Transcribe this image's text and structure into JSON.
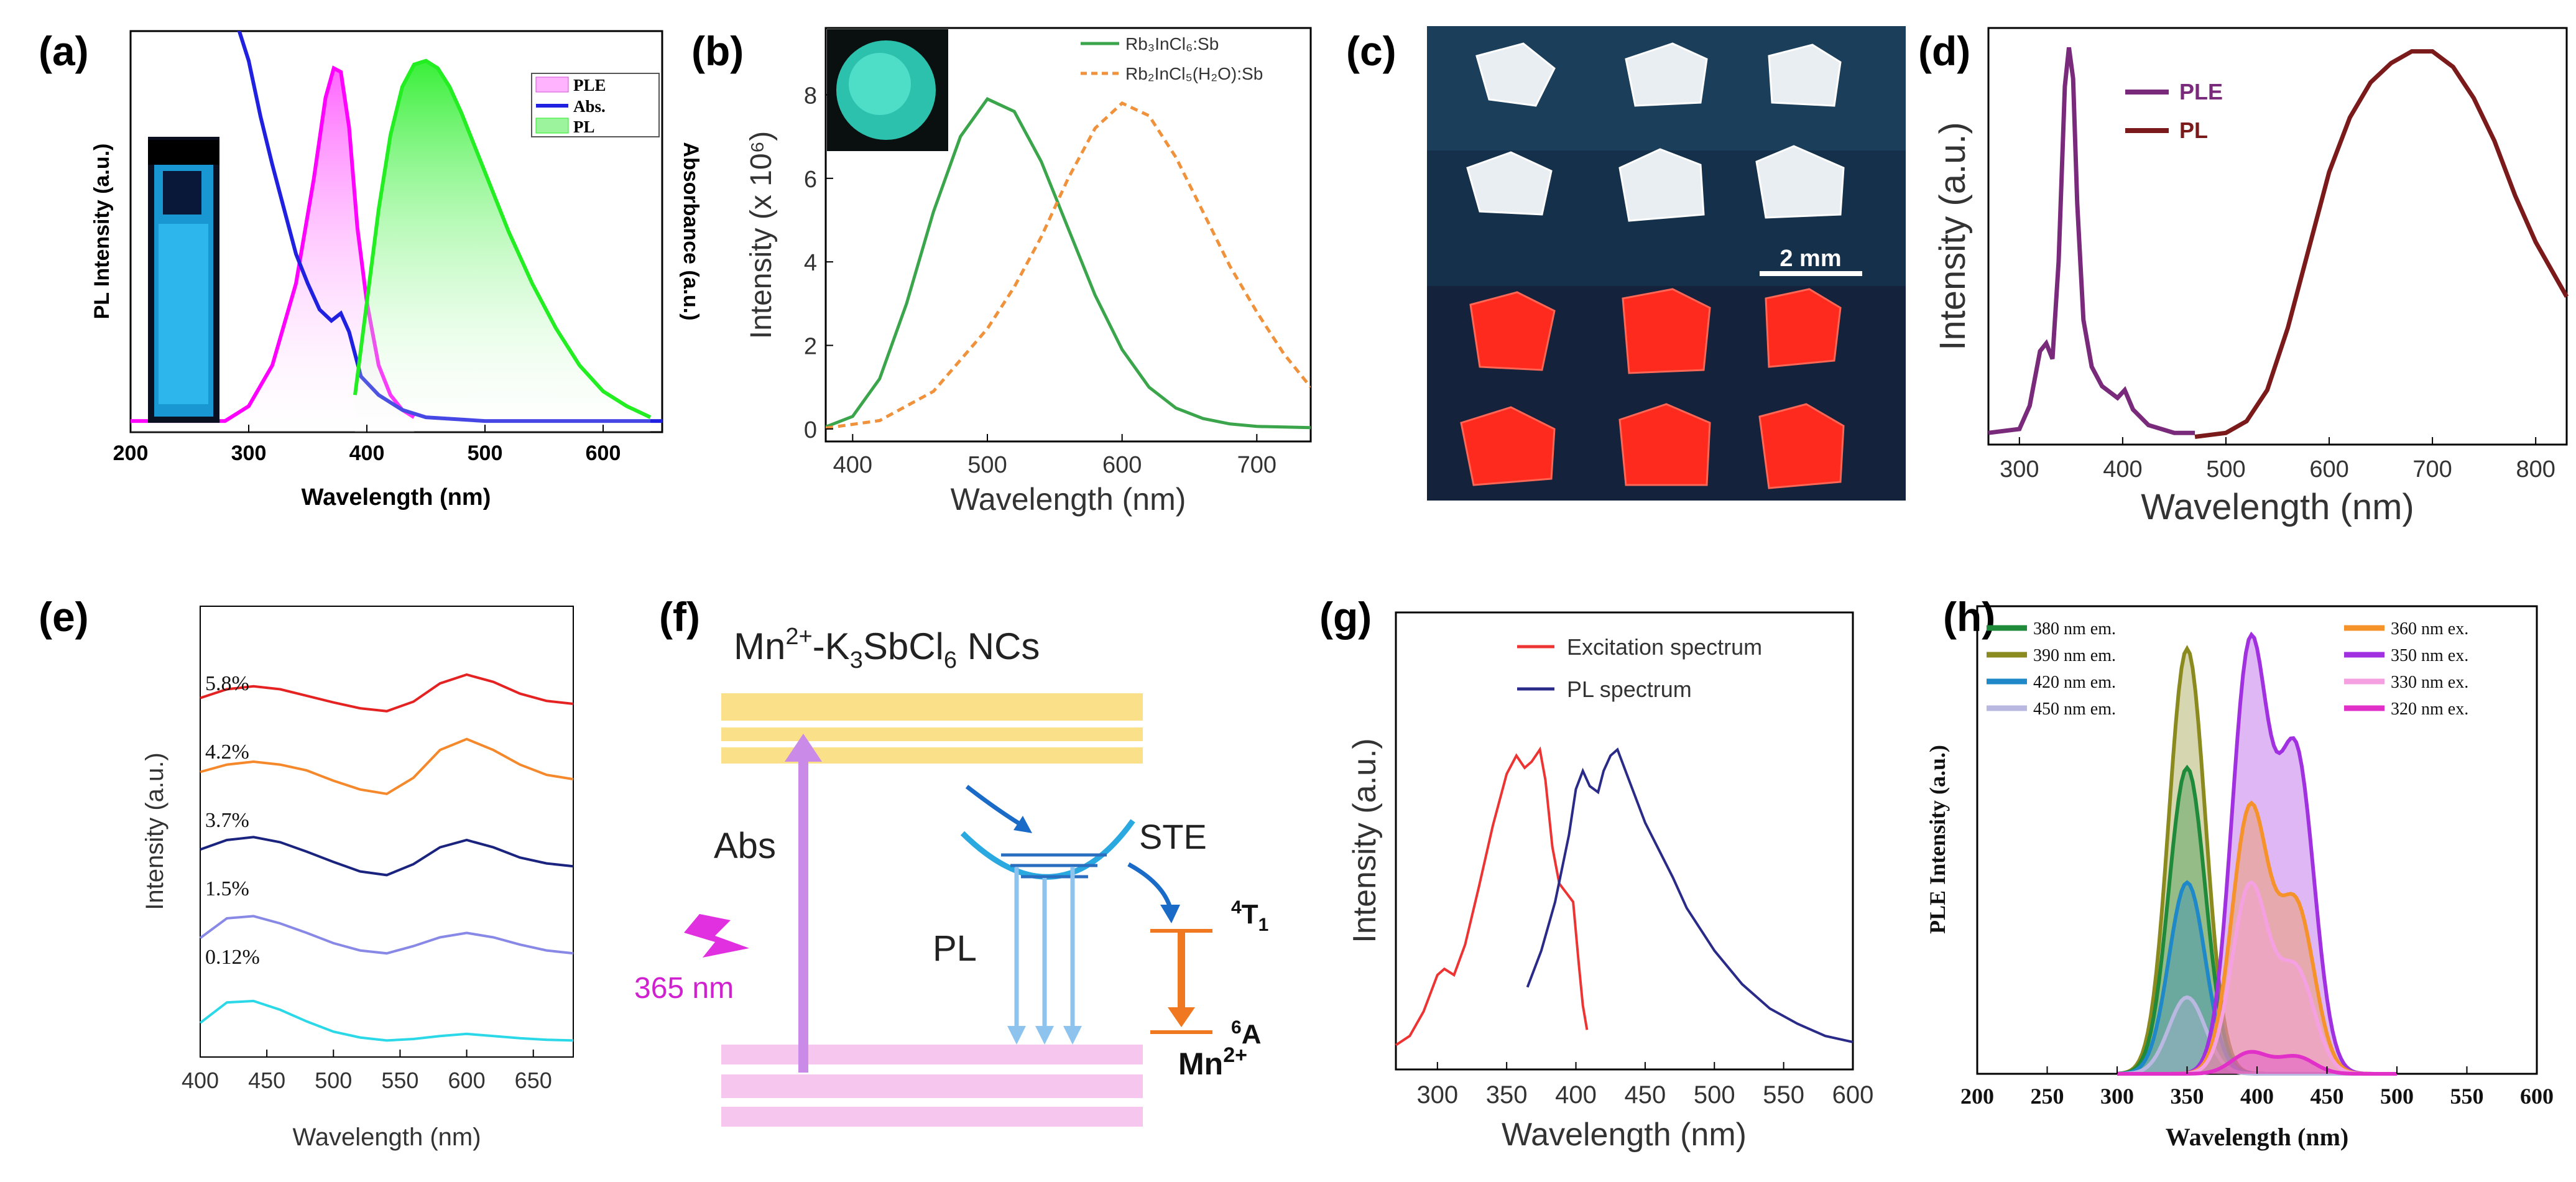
{
  "chart_data": [
    {
      "panel": "(a)",
      "type": "line",
      "xlabel": "Wavelength (nm)",
      "ylabel": "PL Intensity (a.u.)",
      "y2label": "Absorbance (a.u.)",
      "xlim": [
        200,
        650
      ],
      "xticks": [
        200,
        300,
        400,
        500,
        600
      ],
      "legend_position": "top-right",
      "legend": [
        "PLE",
        "Abs.",
        "PL"
      ],
      "series": [
        {
          "name": "PLE",
          "color": "#ff00ff",
          "fill": true,
          "x": [
            200,
            280,
            300,
            320,
            340,
            355,
            365,
            372,
            378,
            385,
            392,
            400,
            410,
            420,
            430,
            440
          ],
          "y": [
            0.03,
            0.03,
            0.07,
            0.18,
            0.4,
            0.68,
            0.9,
            0.98,
            0.97,
            0.82,
            0.55,
            0.35,
            0.18,
            0.1,
            0.06,
            0.04
          ]
        },
        {
          "name": "Abs.",
          "color": "#2020e0",
          "fill": false,
          "x": [
            290,
            300,
            310,
            320,
            330,
            340,
            350,
            360,
            370,
            378,
            385,
            395,
            410,
            430,
            450,
            500,
            600,
            650
          ],
          "y": [
            1.1,
            1.0,
            0.85,
            0.72,
            0.6,
            0.48,
            0.4,
            0.33,
            0.3,
            0.32,
            0.27,
            0.15,
            0.1,
            0.06,
            0.04,
            0.03,
            0.03,
            0.03
          ]
        },
        {
          "name": "PL",
          "color": "#22ee22",
          "fill": true,
          "x": [
            390,
            400,
            410,
            420,
            430,
            440,
            450,
            460,
            470,
            480,
            500,
            520,
            540,
            560,
            580,
            600,
            620,
            640
          ],
          "y": [
            0.1,
            0.35,
            0.6,
            0.8,
            0.93,
            0.99,
            1.0,
            0.98,
            0.93,
            0.86,
            0.7,
            0.54,
            0.4,
            0.28,
            0.18,
            0.11,
            0.07,
            0.04
          ]
        }
      ]
    },
    {
      "panel": "(b)",
      "type": "line",
      "xlabel": "Wavelength (nm)",
      "ylabel": "Intensity (x 10⁶)",
      "xlim": [
        380,
        740
      ],
      "ylim": [
        -0.3,
        9.6
      ],
      "xticks": [
        400,
        500,
        600,
        700
      ],
      "yticks": [
        0,
        2,
        4,
        6,
        8
      ],
      "legend_position": "top-right",
      "legend": [
        "Rb₃InCl₆:Sb",
        "Rb₂InCl₅(H₂O):Sb"
      ],
      "series": [
        {
          "name": "Rb₃InCl₆:Sb",
          "color": "#3aa54a",
          "dash": false,
          "x": [
            380,
            400,
            420,
            440,
            460,
            480,
            500,
            520,
            540,
            560,
            580,
            600,
            620,
            640,
            660,
            680,
            700,
            740
          ],
          "y": [
            0.05,
            0.3,
            1.2,
            3.0,
            5.2,
            7.0,
            7.9,
            7.6,
            6.4,
            4.8,
            3.2,
            1.9,
            1.0,
            0.5,
            0.25,
            0.12,
            0.06,
            0.03
          ]
        },
        {
          "name": "Rb₂InCl₅(H₂O):Sb",
          "color": "#f0923c",
          "dash": true,
          "x": [
            380,
            420,
            460,
            500,
            520,
            540,
            560,
            580,
            600,
            620,
            640,
            660,
            680,
            700,
            720,
            740
          ],
          "y": [
            0.02,
            0.2,
            0.9,
            2.4,
            3.4,
            4.6,
            6.0,
            7.2,
            7.8,
            7.5,
            6.5,
            5.2,
            3.9,
            2.8,
            1.8,
            1.0
          ]
        }
      ]
    },
    {
      "panel": "(d)",
      "type": "line",
      "xlabel": "Wavelength (nm)",
      "ylabel": "Intensity (a.u.)",
      "xlim": [
        270,
        830
      ],
      "xticks": [
        300,
        400,
        500,
        600,
        700,
        800
      ],
      "legend_position": "top-left",
      "legend": [
        "PLE",
        "PL"
      ],
      "series": [
        {
          "name": "PLE",
          "color": "#7a2a7a",
          "x": [
            270,
            300,
            310,
            320,
            326,
            332,
            338,
            344,
            348,
            352,
            356,
            362,
            370,
            380,
            395,
            402,
            410,
            425,
            450,
            470
          ],
          "y": [
            0.01,
            0.02,
            0.08,
            0.22,
            0.24,
            0.2,
            0.45,
            0.9,
            1.0,
            0.92,
            0.6,
            0.3,
            0.18,
            0.13,
            0.1,
            0.12,
            0.07,
            0.03,
            0.01,
            0.01
          ]
        },
        {
          "name": "PL",
          "color": "#7a1a1a",
          "x": [
            470,
            500,
            520,
            540,
            560,
            580,
            600,
            620,
            640,
            660,
            680,
            700,
            720,
            740,
            760,
            780,
            800,
            830
          ],
          "y": [
            0.0,
            0.01,
            0.04,
            0.12,
            0.28,
            0.48,
            0.68,
            0.82,
            0.91,
            0.96,
            0.99,
            0.99,
            0.95,
            0.87,
            0.76,
            0.62,
            0.5,
            0.36
          ]
        }
      ]
    },
    {
      "panel": "(e)",
      "type": "line",
      "xlabel": "Wavelength (nm)",
      "ylabel": "Intensity (a.u.)",
      "xlim": [
        400,
        680
      ],
      "xticks": [
        400,
        450,
        500,
        550,
        600,
        650
      ],
      "series_labels": [
        "5.8%",
        "4.2%",
        "3.7%",
        "1.5%",
        "0.12%"
      ],
      "series": [
        {
          "name": "5.8%",
          "color": "#e52222",
          "offset": 4,
          "x": [
            400,
            420,
            440,
            460,
            480,
            500,
            520,
            540,
            560,
            580,
            600,
            620,
            640,
            660,
            680
          ],
          "y": [
            0.3,
            0.42,
            0.46,
            0.42,
            0.33,
            0.24,
            0.16,
            0.12,
            0.25,
            0.5,
            0.62,
            0.52,
            0.36,
            0.26,
            0.22
          ]
        },
        {
          "name": "4.2%",
          "color": "#f5882a",
          "offset": 3,
          "x": [
            400,
            420,
            440,
            460,
            480,
            500,
            520,
            540,
            560,
            580,
            600,
            620,
            640,
            660,
            680
          ],
          "y": [
            0.4,
            0.5,
            0.54,
            0.5,
            0.42,
            0.28,
            0.16,
            0.1,
            0.32,
            0.7,
            0.85,
            0.7,
            0.5,
            0.36,
            0.3
          ]
        },
        {
          "name": "3.7%",
          "color": "#1a237e",
          "offset": 2,
          "x": [
            400,
            420,
            440,
            460,
            480,
            500,
            520,
            540,
            560,
            580,
            600,
            620,
            640,
            660,
            680
          ],
          "y": [
            0.45,
            0.58,
            0.62,
            0.55,
            0.42,
            0.28,
            0.15,
            0.1,
            0.25,
            0.48,
            0.58,
            0.48,
            0.34,
            0.26,
            0.22
          ]
        },
        {
          "name": "1.5%",
          "color": "#8888e6",
          "offset": 1,
          "x": [
            400,
            420,
            440,
            460,
            480,
            500,
            520,
            540,
            560,
            580,
            600,
            620,
            640,
            660,
            680
          ],
          "y": [
            0.35,
            0.62,
            0.65,
            0.55,
            0.42,
            0.28,
            0.18,
            0.14,
            0.24,
            0.36,
            0.42,
            0.36,
            0.26,
            0.18,
            0.14
          ]
        },
        {
          "name": "0.12%",
          "color": "#2ad8e8",
          "offset": 0,
          "x": [
            400,
            420,
            440,
            460,
            480,
            500,
            520,
            540,
            560,
            580,
            600,
            620,
            640,
            660,
            680
          ],
          "y": [
            0.3,
            0.58,
            0.6,
            0.48,
            0.32,
            0.18,
            0.1,
            0.06,
            0.08,
            0.12,
            0.15,
            0.12,
            0.09,
            0.07,
            0.06
          ]
        }
      ]
    },
    {
      "panel": "(g)",
      "type": "line",
      "xlabel": "Wavelength (nm)",
      "ylabel": "Intensity (a.u.)",
      "xlim": [
        270,
        600
      ],
      "xticks": [
        300,
        350,
        400,
        450,
        500,
        550,
        600
      ],
      "legend_position": "top-right",
      "legend": [
        "Excitation spectrum",
        "PL spectrum"
      ],
      "series": [
        {
          "name": "Excitation spectrum",
          "color": "#ee3333",
          "x": [
            270,
            280,
            290,
            300,
            305,
            312,
            320,
            330,
            340,
            350,
            357,
            363,
            368,
            374,
            378,
            383,
            388,
            393,
            398,
            402,
            405,
            408
          ],
          "y": [
            0.03,
            0.06,
            0.14,
            0.26,
            0.28,
            0.26,
            0.36,
            0.55,
            0.75,
            0.92,
            0.98,
            0.94,
            0.96,
            1.0,
            0.9,
            0.68,
            0.56,
            0.53,
            0.5,
            0.3,
            0.16,
            0.08
          ]
        },
        {
          "name": "PL spectrum",
          "color": "#2a2a88",
          "x": [
            365,
            375,
            385,
            395,
            400,
            405,
            410,
            416,
            420,
            425,
            430,
            440,
            450,
            460,
            470,
            480,
            500,
            520,
            540,
            560,
            580,
            600
          ],
          "y": [
            0.22,
            0.34,
            0.5,
            0.72,
            0.87,
            0.93,
            0.88,
            0.86,
            0.93,
            0.98,
            1.0,
            0.88,
            0.76,
            0.67,
            0.58,
            0.48,
            0.34,
            0.23,
            0.15,
            0.1,
            0.06,
            0.04
          ]
        }
      ]
    },
    {
      "panel": "(h)",
      "type": "area",
      "xlabel": "Wavelength (nm)",
      "ylabel": "PLE Intensity (a.u.)",
      "xlim": [
        200,
        600
      ],
      "xticks": [
        200,
        250,
        300,
        350,
        400,
        450,
        500,
        550,
        600
      ],
      "legend_position": "top",
      "legend_left": [
        "380 nm em.",
        "390 nm em.",
        "420 nm em.",
        "450 nm em."
      ],
      "legend_right": [
        "360 nm ex.",
        "350 nm ex.",
        "330 nm ex.",
        "320 nm ex."
      ],
      "series": [
        {
          "name": "390 nm em.",
          "color": "#8a8a1e",
          "type": "peak",
          "center": 350,
          "width": 13,
          "peak": 1.0
        },
        {
          "name": "380 nm em.",
          "color": "#1e8a3a",
          "type": "peak",
          "center": 350,
          "width": 13,
          "peak": 0.72
        },
        {
          "name": "420 nm em.",
          "color": "#1e88c8",
          "type": "peak",
          "center": 350,
          "width": 13,
          "peak": 0.45
        },
        {
          "name": "450 nm em.",
          "color": "#b8b8e0",
          "type": "peak",
          "center": 350,
          "width": 13,
          "peak": 0.18
        },
        {
          "name": "350 nm ex.",
          "color": "#a030e0",
          "type": "double",
          "c1": 395,
          "c2": 428,
          "width": 13,
          "p1": 1.0,
          "p2": 0.74
        },
        {
          "name": "360 nm ex.",
          "color": "#f5922a",
          "type": "double",
          "c1": 395,
          "c2": 428,
          "width": 13,
          "p1": 0.62,
          "p2": 0.39
        },
        {
          "name": "330 nm ex.",
          "color": "#f5a0e0",
          "type": "double",
          "c1": 395,
          "c2": 428,
          "width": 13,
          "p1": 0.44,
          "p2": 0.24
        },
        {
          "name": "320 nm ex.",
          "color": "#e030c8",
          "type": "double",
          "c1": 395,
          "c2": 428,
          "width": 13,
          "p1": 0.05,
          "p2": 0.04
        }
      ]
    }
  ],
  "panels": {
    "a": {
      "label": "(a)"
    },
    "b": {
      "label": "(b)"
    },
    "c": {
      "label": "(c)",
      "scale_bar": "2 mm"
    },
    "d": {
      "label": "(d)"
    },
    "e": {
      "label": "(e)"
    },
    "f": {
      "label": "(f)",
      "title_main": "Mn",
      "title_sup": "2+",
      "title_rest": "-K",
      "title_sub1": "3",
      "title_mid": "SbCl",
      "title_sub2": "6",
      "title_end": " NCs",
      "abs": "Abs",
      "ste": "STE",
      "pl": "PL",
      "wavelength": "365 nm",
      "t1_sup": "4",
      "t1_main": "T",
      "t1_sub": "1",
      "a6_sup": "6",
      "a6_main": "A",
      "mn": "Mn",
      "mn_sup": "2+"
    },
    "g": {
      "label": "(g)"
    },
    "h": {
      "label": "(h)"
    }
  },
  "colors": {
    "band_yellow": "#fbe08a",
    "band_pink": "#f7c6ef",
    "abs_arrow": "#c98ae8",
    "pl_arrows": "#8ec3ee",
    "ste": "#2aa8e0",
    "mn_levels": "#f07820",
    "lightning": "#e030e0"
  }
}
